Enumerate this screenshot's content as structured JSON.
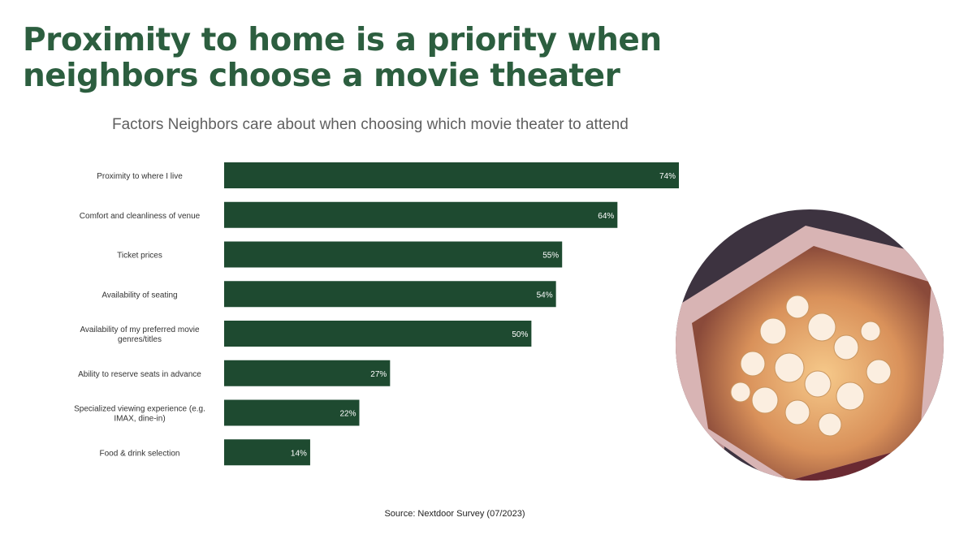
{
  "headline": "Proximity to home is a priority when neighbors choose a movie theater",
  "source": "Source: Nextdoor Survey (07/2023)",
  "bar_color": "#1e4a30",
  "photo_icon": "popcorn-box-photo",
  "chart_data": {
    "type": "bar",
    "orientation": "horizontal",
    "title": "Factors Neighbors care about when choosing which movie theater to attend",
    "xlabel": "",
    "ylabel": "",
    "categories": [
      "Proximity to where I live",
      "Comfort and cleanliness of venue",
      "Ticket prices",
      "Availability of seating",
      "Availability of my preferred movie genres/titles",
      "Ability to reserve seats in advance",
      "Specialized viewing experience (e.g. IMAX, dine-in)",
      "Food & drink selection"
    ],
    "values": [
      74,
      64,
      55,
      54,
      50,
      27,
      22,
      14
    ],
    "data_labels": [
      "74%",
      "64%",
      "55%",
      "54%",
      "50%",
      "27%",
      "22%",
      "14%"
    ],
    "unit": "%",
    "grid": false,
    "legend": "none"
  }
}
